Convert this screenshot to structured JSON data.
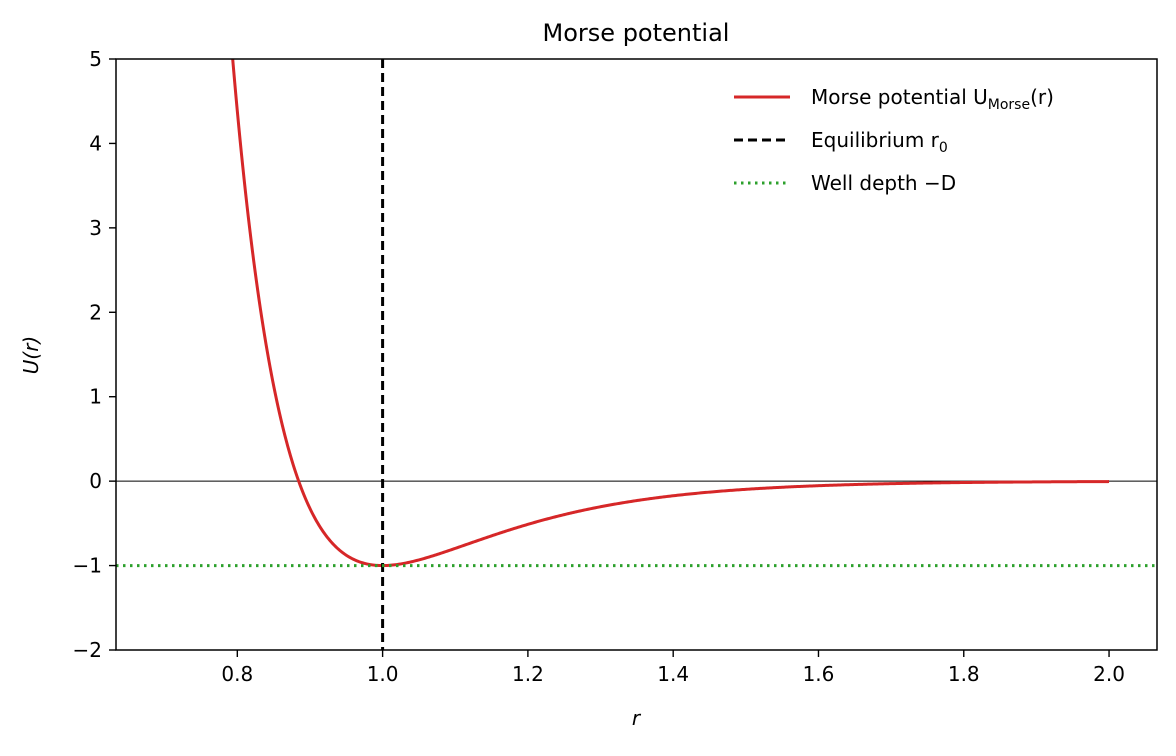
{
  "chart_data": {
    "type": "line",
    "title": "Morse potential",
    "xlabel": "r",
    "ylabel": "U(r)",
    "xlim": [
      0.633,
      2.066
    ],
    "ylim": [
      -2,
      5
    ],
    "grid": false,
    "legend_position": "top-right",
    "x_ticks": [
      {
        "value": 0.8,
        "label": "0.8"
      },
      {
        "value": 1.0,
        "label": "1.0"
      },
      {
        "value": 1.2,
        "label": "1.2"
      },
      {
        "value": 1.4,
        "label": "1.4"
      },
      {
        "value": 1.6,
        "label": "1.6"
      },
      {
        "value": 1.8,
        "label": "1.8"
      },
      {
        "value": 2.0,
        "label": "2.0"
      }
    ],
    "y_ticks": [
      {
        "value": -2,
        "label": "−2"
      },
      {
        "value": -1,
        "label": "−1"
      },
      {
        "value": 0,
        "label": "0"
      },
      {
        "value": 1,
        "label": "1"
      },
      {
        "value": 2,
        "label": "2"
      },
      {
        "value": 3,
        "label": "3"
      },
      {
        "value": 4,
        "label": "4"
      },
      {
        "value": 5,
        "label": "5"
      }
    ],
    "series": [
      {
        "name": "Morse potential U_Morse(r)",
        "legend_main": "Morse potential U",
        "legend_sub": "Morse",
        "legend_tail": "(r)",
        "color": "#d62728",
        "style": "solid",
        "function": "morse",
        "params": {
          "D": 1.0,
          "a": 6.0,
          "r0": 1.0
        },
        "x_range": [
          0.5,
          2.0
        ]
      },
      {
        "name": "Equilibrium r_0",
        "legend_main": "Equilibrium r",
        "legend_sub": "0",
        "color": "#000000",
        "style": "dashed",
        "vertical_at": 1.0
      },
      {
        "name": "Well depth −D",
        "legend_main": "Well depth −D",
        "color": "#2ca02c",
        "style": "dotted",
        "horizontal_at": -1.0
      }
    ],
    "reference_line": {
      "y": 0,
      "color": "#000000"
    }
  }
}
